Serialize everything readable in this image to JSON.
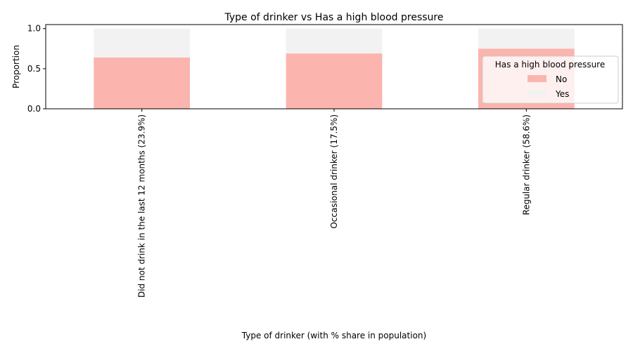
{
  "chart_data": {
    "type": "bar",
    "stacked": true,
    "title": "Type of drinker vs Has a high blood pressure",
    "xlabel": "Type of drinker (with % share in population)",
    "ylabel": "Proportion",
    "ylim": [
      0,
      1.05
    ],
    "yticks": [
      "0.0",
      "0.5",
      "1.0"
    ],
    "categories": [
      "Did not drink in the last 12 months (23.9%)",
      "Occasional drinker (17.5%)",
      "Regular drinker (58.6%)"
    ],
    "series": [
      {
        "name": "No",
        "values": [
          0.64,
          0.69,
          0.75
        ],
        "color": "#fbb4ae"
      },
      {
        "name": "Yes",
        "values": [
          0.36,
          0.31,
          0.25
        ],
        "color": "#f2f2f2"
      }
    ],
    "legend": {
      "title": "Has a high blood pressure",
      "position": "right"
    },
    "grid": false
  }
}
